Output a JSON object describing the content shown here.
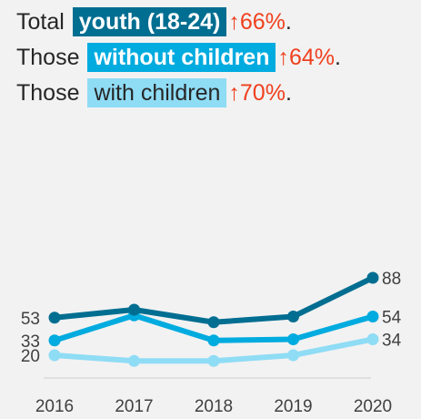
{
  "headline": {
    "rows": [
      {
        "prefix": "Total",
        "highlight": "youth (18-24)",
        "change": "↑66%",
        "suffix": "."
      },
      {
        "prefix": "Those",
        "highlight": "without children",
        "change": "↑64%",
        "suffix": "."
      },
      {
        "prefix": "Those",
        "highlight": "with children",
        "change": "↑70%",
        "suffix": "."
      }
    ]
  },
  "colors": {
    "total": "#006e91",
    "without_children": "#00abdf",
    "with_children": "#8fdcf5",
    "increase": "#f0401e",
    "axis": "#d9d9d9"
  },
  "chart_data": {
    "type": "line",
    "x": [
      "2016",
      "2017",
      "2018",
      "2019",
      "2020"
    ],
    "series": [
      {
        "name": "youth (18-24)",
        "values": [
          53,
          60,
          49,
          54,
          88
        ],
        "start_label": "53",
        "end_label": "88"
      },
      {
        "name": "without children",
        "values": [
          33,
          55,
          33,
          34,
          54
        ],
        "start_label": "33",
        "end_label": "54"
      },
      {
        "name": "with children",
        "values": [
          20,
          15,
          15,
          20,
          34
        ],
        "start_label": "20",
        "end_label": "34"
      }
    ],
    "ylim": [
      0,
      100
    ],
    "grid": false,
    "legend": "top (text headline)"
  }
}
